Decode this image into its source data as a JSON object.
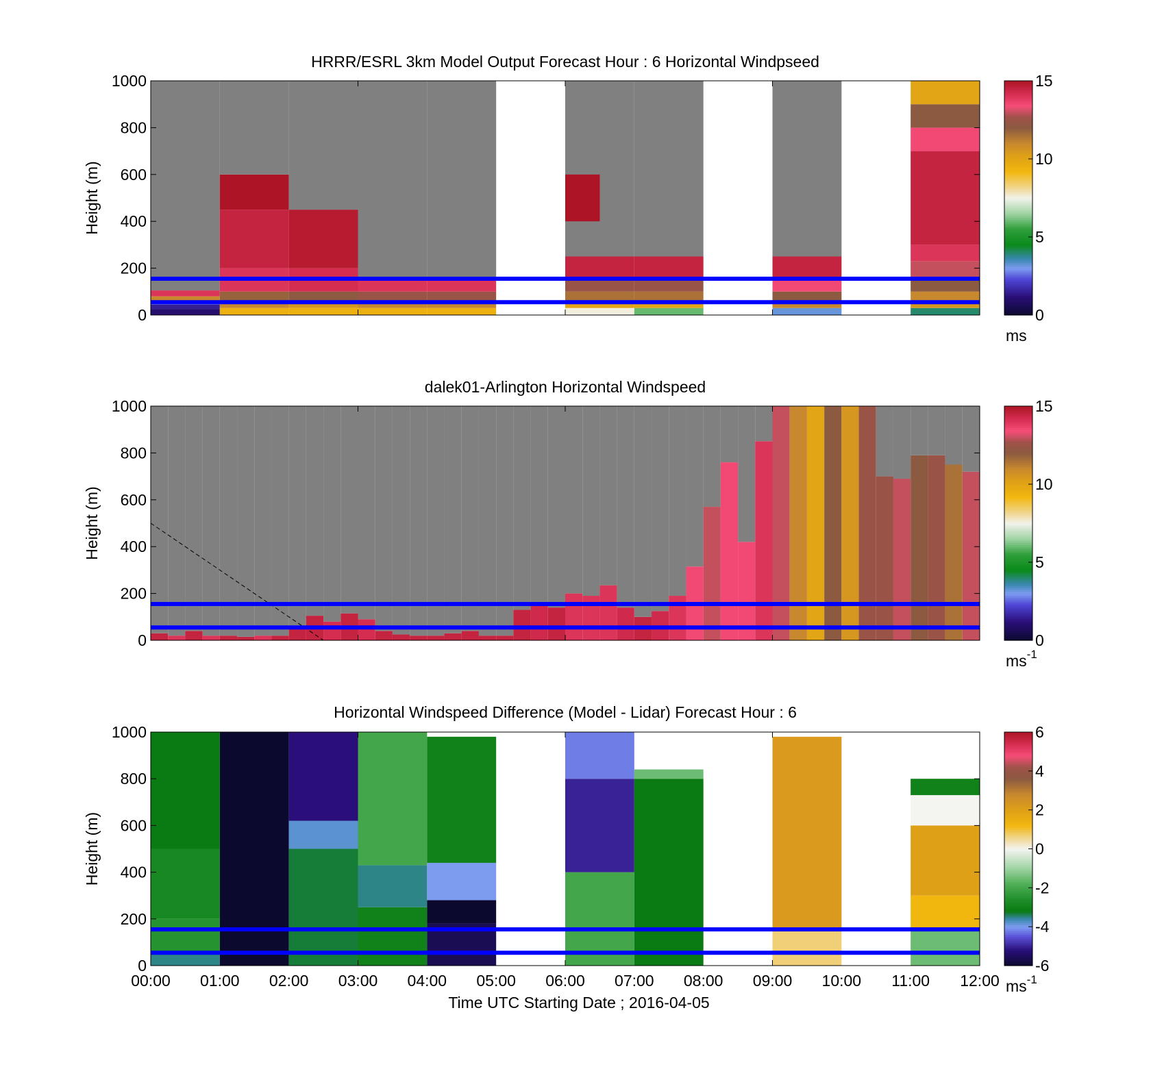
{
  "chart_data": [
    {
      "type": "heatmap",
      "title": "HRRR/ESRL 3km Model Output   Forecast Hour : 6 Horizontal Windpseed",
      "ylabel": "Height (m)",
      "ylim": [
        0,
        1000
      ],
      "yticks": [
        "0",
        "200",
        "400",
        "600",
        "800",
        "1000"
      ],
      "xlim": [
        0,
        12
      ],
      "xticks": [],
      "colorbar": {
        "range": [
          0,
          15
        ],
        "ticks": [
          "0",
          "5",
          "10",
          "15"
        ],
        "unit": "ms",
        "unit_sup": "",
        "map": "speed"
      },
      "reference_lines_m": [
        155,
        55
      ],
      "columns": [
        {
          "t0": 0,
          "t1": 1,
          "top": 105,
          "profile": [
            [
              0,
              25,
              1
            ],
            [
              25,
              45,
              1.5
            ],
            [
              45,
              60,
              3
            ],
            [
              60,
              80,
              11
            ],
            [
              80,
              105,
              14
            ]
          ]
        },
        {
          "t0": 1,
          "t1": 2,
          "top": 600,
          "profile": [
            [
              0,
              30,
              9.5
            ],
            [
              30,
              60,
              11
            ],
            [
              60,
              100,
              11.8
            ],
            [
              100,
              200,
              14
            ],
            [
              200,
              450,
              14.5
            ],
            [
              450,
              600,
              15
            ]
          ]
        },
        {
          "t0": 2,
          "t1": 3,
          "top": 450,
          "profile": [
            [
              0,
              30,
              9.5
            ],
            [
              30,
              60,
              10.5
            ],
            [
              60,
              100,
              12
            ],
            [
              100,
              200,
              14.2
            ],
            [
              200,
              450,
              14.8
            ]
          ]
        },
        {
          "t0": 3,
          "t1": 4,
          "top": 150,
          "profile": [
            [
              0,
              30,
              9.5
            ],
            [
              30,
              60,
              11
            ],
            [
              60,
              100,
              12.5
            ],
            [
              100,
              150,
              14
            ]
          ]
        },
        {
          "t0": 4,
          "t1": 5,
          "top": 150,
          "profile": [
            [
              0,
              30,
              9.5
            ],
            [
              30,
              60,
              11
            ],
            [
              60,
              100,
              12.5
            ],
            [
              100,
              150,
              14
            ]
          ]
        },
        {
          "t0": 6,
          "t1": 7,
          "top": 250,
          "profile": [
            [
              0,
              30,
              7.6
            ],
            [
              30,
              60,
              10
            ],
            [
              60,
              100,
              11.5
            ],
            [
              100,
              150,
              12.5
            ],
            [
              150,
              250,
              14.5
            ]
          ],
          "cap": {
            "y0": 400,
            "y1": 600,
            "v": 15
          }
        },
        {
          "t0": 7,
          "t1": 8,
          "top": 250,
          "profile": [
            [
              0,
              30,
              6
            ],
            [
              30,
              60,
              10
            ],
            [
              60,
              100,
              11.5
            ],
            [
              100,
              150,
              12.5
            ],
            [
              150,
              250,
              14.5
            ]
          ]
        },
        {
          "t0": 9,
          "t1": 10,
          "top": 250,
          "profile": [
            [
              0,
              30,
              3.2
            ],
            [
              30,
              60,
              11
            ],
            [
              60,
              100,
              12
            ],
            [
              100,
              150,
              13.5
            ],
            [
              150,
              250,
              14.5
            ]
          ]
        },
        {
          "t0": 11,
          "t1": 12,
          "top": 1000,
          "profile": [
            [
              0,
              30,
              4
            ],
            [
              30,
              60,
              10.5
            ],
            [
              60,
              100,
              11
            ],
            [
              100,
              150,
              12
            ],
            [
              150,
              230,
              13
            ],
            [
              230,
              300,
              14
            ],
            [
              300,
              700,
              14.5
            ],
            [
              700,
              800,
              13.5
            ],
            [
              800,
              900,
              12
            ],
            [
              900,
              1000,
              10
            ]
          ]
        }
      ]
    },
    {
      "type": "heatmap",
      "title": "dalek01-Arlington  Horizontal Windspeed",
      "ylabel": "Height (m)",
      "ylim": [
        0,
        1000
      ],
      "yticks": [
        "0",
        "200",
        "400",
        "600",
        "800",
        "1000"
      ],
      "xlim": [
        0,
        12
      ],
      "xticks": [],
      "colorbar": {
        "range": [
          0,
          15
        ],
        "ticks": [
          "0",
          "5",
          "10",
          "15"
        ],
        "unit": "ms",
        "unit_sup": "-1",
        "map": "speed"
      },
      "reference_lines_m": [
        155,
        55
      ],
      "dashed_line": [
        [
          0,
          500
        ],
        [
          2.5,
          0
        ]
      ],
      "columns": [
        {
          "t0": 0.0,
          "t1": 0.25,
          "top": 30,
          "v": 14.5
        },
        {
          "t0": 0.25,
          "t1": 0.5,
          "top": 20,
          "v": 14
        },
        {
          "t0": 0.5,
          "t1": 0.75,
          "top": 40,
          "v": 14.5
        },
        {
          "t0": 0.75,
          "t1": 1.0,
          "top": 20,
          "v": 14
        },
        {
          "t0": 1.0,
          "t1": 1.25,
          "top": 20,
          "v": 14.5
        },
        {
          "t0": 1.25,
          "t1": 1.5,
          "top": 15,
          "v": 14.5
        },
        {
          "t0": 1.5,
          "t1": 1.75,
          "top": 20,
          "v": 14
        },
        {
          "t0": 1.75,
          "t1": 2.0,
          "top": 20,
          "v": 14.5
        },
        {
          "t0": 2.0,
          "t1": 2.25,
          "top": 60,
          "v": 14.5
        },
        {
          "t0": 2.25,
          "t1": 2.5,
          "top": 105,
          "v": 14.5
        },
        {
          "t0": 2.5,
          "t1": 2.75,
          "top": 80,
          "v": 14.2
        },
        {
          "t0": 2.75,
          "t1": 3.0,
          "top": 115,
          "v": 14.5
        },
        {
          "t0": 3.0,
          "t1": 3.25,
          "top": 90,
          "v": 14.2
        },
        {
          "t0": 3.25,
          "t1": 3.5,
          "top": 40,
          "v": 14.5
        },
        {
          "t0": 3.5,
          "t1": 3.75,
          "top": 25,
          "v": 14.5
        },
        {
          "t0": 3.75,
          "t1": 4.0,
          "top": 20,
          "v": 14.5
        },
        {
          "t0": 4.0,
          "t1": 4.25,
          "top": 20,
          "v": 14.5
        },
        {
          "t0": 4.25,
          "t1": 4.5,
          "top": 30,
          "v": 14.5
        },
        {
          "t0": 4.5,
          "t1": 4.75,
          "top": 40,
          "v": 14.5
        },
        {
          "t0": 4.75,
          "t1": 5.0,
          "top": 20,
          "v": 14.5
        },
        {
          "t0": 5.0,
          "t1": 5.25,
          "top": 20,
          "v": 14.5
        },
        {
          "t0": 5.25,
          "t1": 5.5,
          "top": 130,
          "v": 14.5
        },
        {
          "t0": 5.5,
          "t1": 5.75,
          "top": 160,
          "v": 14.3
        },
        {
          "t0": 5.75,
          "t1": 6.0,
          "top": 140,
          "v": 14.5
        },
        {
          "t0": 6.0,
          "t1": 6.25,
          "top": 200,
          "v": 14
        },
        {
          "t0": 6.25,
          "t1": 6.5,
          "top": 190,
          "v": 14
        },
        {
          "t0": 6.5,
          "t1": 6.75,
          "top": 235,
          "v": 14
        },
        {
          "t0": 6.75,
          "t1": 7.0,
          "top": 140,
          "v": 14.3
        },
        {
          "t0": 7.0,
          "t1": 7.25,
          "top": 100,
          "v": 14.5
        },
        {
          "t0": 7.25,
          "t1": 7.5,
          "top": 125,
          "v": 14.3
        },
        {
          "t0": 7.5,
          "t1": 7.75,
          "top": 190,
          "v": 14
        },
        {
          "t0": 7.75,
          "t1": 8.0,
          "top": 315,
          "v": 13.5
        },
        {
          "t0": 8.0,
          "t1": 8.25,
          "top": 570,
          "v": 13
        },
        {
          "t0": 8.25,
          "t1": 8.5,
          "top": 760,
          "v": 13.5
        },
        {
          "t0": 8.5,
          "t1": 8.75,
          "top": 420,
          "v": 13.5
        },
        {
          "t0": 8.75,
          "t1": 9.0,
          "top": 850,
          "v": 14
        },
        {
          "t0": 9.0,
          "t1": 9.25,
          "top": 1000,
          "v": 13
        },
        {
          "t0": 9.25,
          "t1": 9.5,
          "top": 1000,
          "v": 11
        },
        {
          "t0": 9.5,
          "t1": 9.75,
          "top": 1000,
          "v": 10
        },
        {
          "t0": 9.75,
          "t1": 10.0,
          "top": 1000,
          "v": 12
        },
        {
          "t0": 10.0,
          "t1": 10.25,
          "top": 1000,
          "v": 10.5
        },
        {
          "t0": 10.25,
          "t1": 10.5,
          "top": 1000,
          "v": 12.5
        },
        {
          "t0": 10.5,
          "t1": 10.75,
          "top": 700,
          "v": 12.5
        },
        {
          "t0": 10.75,
          "t1": 11.0,
          "top": 690,
          "v": 13
        },
        {
          "t0": 11.0,
          "t1": 11.25,
          "top": 790,
          "v": 12
        },
        {
          "t0": 11.25,
          "t1": 11.5,
          "top": 790,
          "v": 12.5
        },
        {
          "t0": 11.5,
          "t1": 11.75,
          "top": 750,
          "v": 11.5
        },
        {
          "t0": 11.75,
          "t1": 12.0,
          "top": 720,
          "v": 13
        }
      ]
    },
    {
      "type": "heatmap",
      "title": "Horizontal Windspeed Difference (Model - Lidar) Forecast Hour : 6",
      "ylabel": "Height (m)",
      "xlabel": "Time UTC  Starting Date ; 2016-04-05",
      "ylim": [
        0,
        1000
      ],
      "yticks": [
        "0",
        "200",
        "400",
        "600",
        "800",
        "1000"
      ],
      "xlim": [
        0,
        12
      ],
      "xticks": [
        "00:00",
        "01:00",
        "02:00",
        "03:00",
        "04:00",
        "05:00",
        "06:00",
        "07:00",
        "08:00",
        "09:00",
        "10:00",
        "11:00",
        "12:00"
      ],
      "colorbar": {
        "range": [
          -6,
          6
        ],
        "ticks": [
          "-6",
          "-4",
          "-2",
          "0",
          "2",
          "4",
          "6"
        ],
        "unit": "ms",
        "unit_sup": "-1",
        "map": "diff"
      },
      "reference_lines_m": [
        155,
        55
      ],
      "columns": [
        {
          "t0": 0,
          "t1": 1,
          "top": 1000,
          "profile": [
            [
              0,
              60,
              -3.5
            ],
            [
              60,
              200,
              -2.5
            ],
            [
              200,
              500,
              -2.8
            ],
            [
              500,
              1000,
              -3.2
            ]
          ]
        },
        {
          "t0": 1,
          "t1": 2,
          "top": 1000,
          "profile": [
            [
              0,
              1000,
              -6.1
            ]
          ]
        },
        {
          "t0": 2,
          "t1": 3,
          "top": 1000,
          "profile": [
            [
              0,
              500,
              -3.3
            ],
            [
              500,
              620,
              -3.8
            ],
            [
              620,
              1000,
              -5.2
            ]
          ]
        },
        {
          "t0": 3,
          "t1": 4,
          "top": 1000,
          "profile": [
            [
              0,
              250,
              -3
            ],
            [
              250,
              430,
              -3.5
            ],
            [
              430,
              1000,
              -2
            ]
          ]
        },
        {
          "t0": 4,
          "t1": 5,
          "top": 980,
          "profile": [
            [
              0,
              180,
              -5.6
            ],
            [
              180,
              280,
              -6.5
            ],
            [
              280,
              440,
              -4
            ],
            [
              440,
              980,
              -3
            ]
          ]
        },
        {
          "t0": 6,
          "t1": 7,
          "top": 1000,
          "profile": [
            [
              0,
              400,
              -2
            ],
            [
              400,
              800,
              -5
            ],
            [
              800,
              1000,
              -4.2
            ]
          ]
        },
        {
          "t0": 7,
          "t1": 8,
          "top": 840,
          "profile": [
            [
              0,
              800,
              -3.2
            ],
            [
              800,
              840,
              -1.5
            ]
          ]
        },
        {
          "t0": 9,
          "t1": 10,
          "top": 980,
          "profile": [
            [
              0,
              150,
              0.7
            ],
            [
              150,
              980,
              2.2
            ]
          ]
        },
        {
          "t0": 11,
          "t1": 12,
          "top": 800,
          "profile": [
            [
              0,
              150,
              -1.5
            ],
            [
              150,
              300,
              1.2
            ],
            [
              300,
              600,
              2
            ],
            [
              600,
              730,
              0
            ],
            [
              730,
              800,
              -3
            ]
          ]
        }
      ]
    }
  ]
}
